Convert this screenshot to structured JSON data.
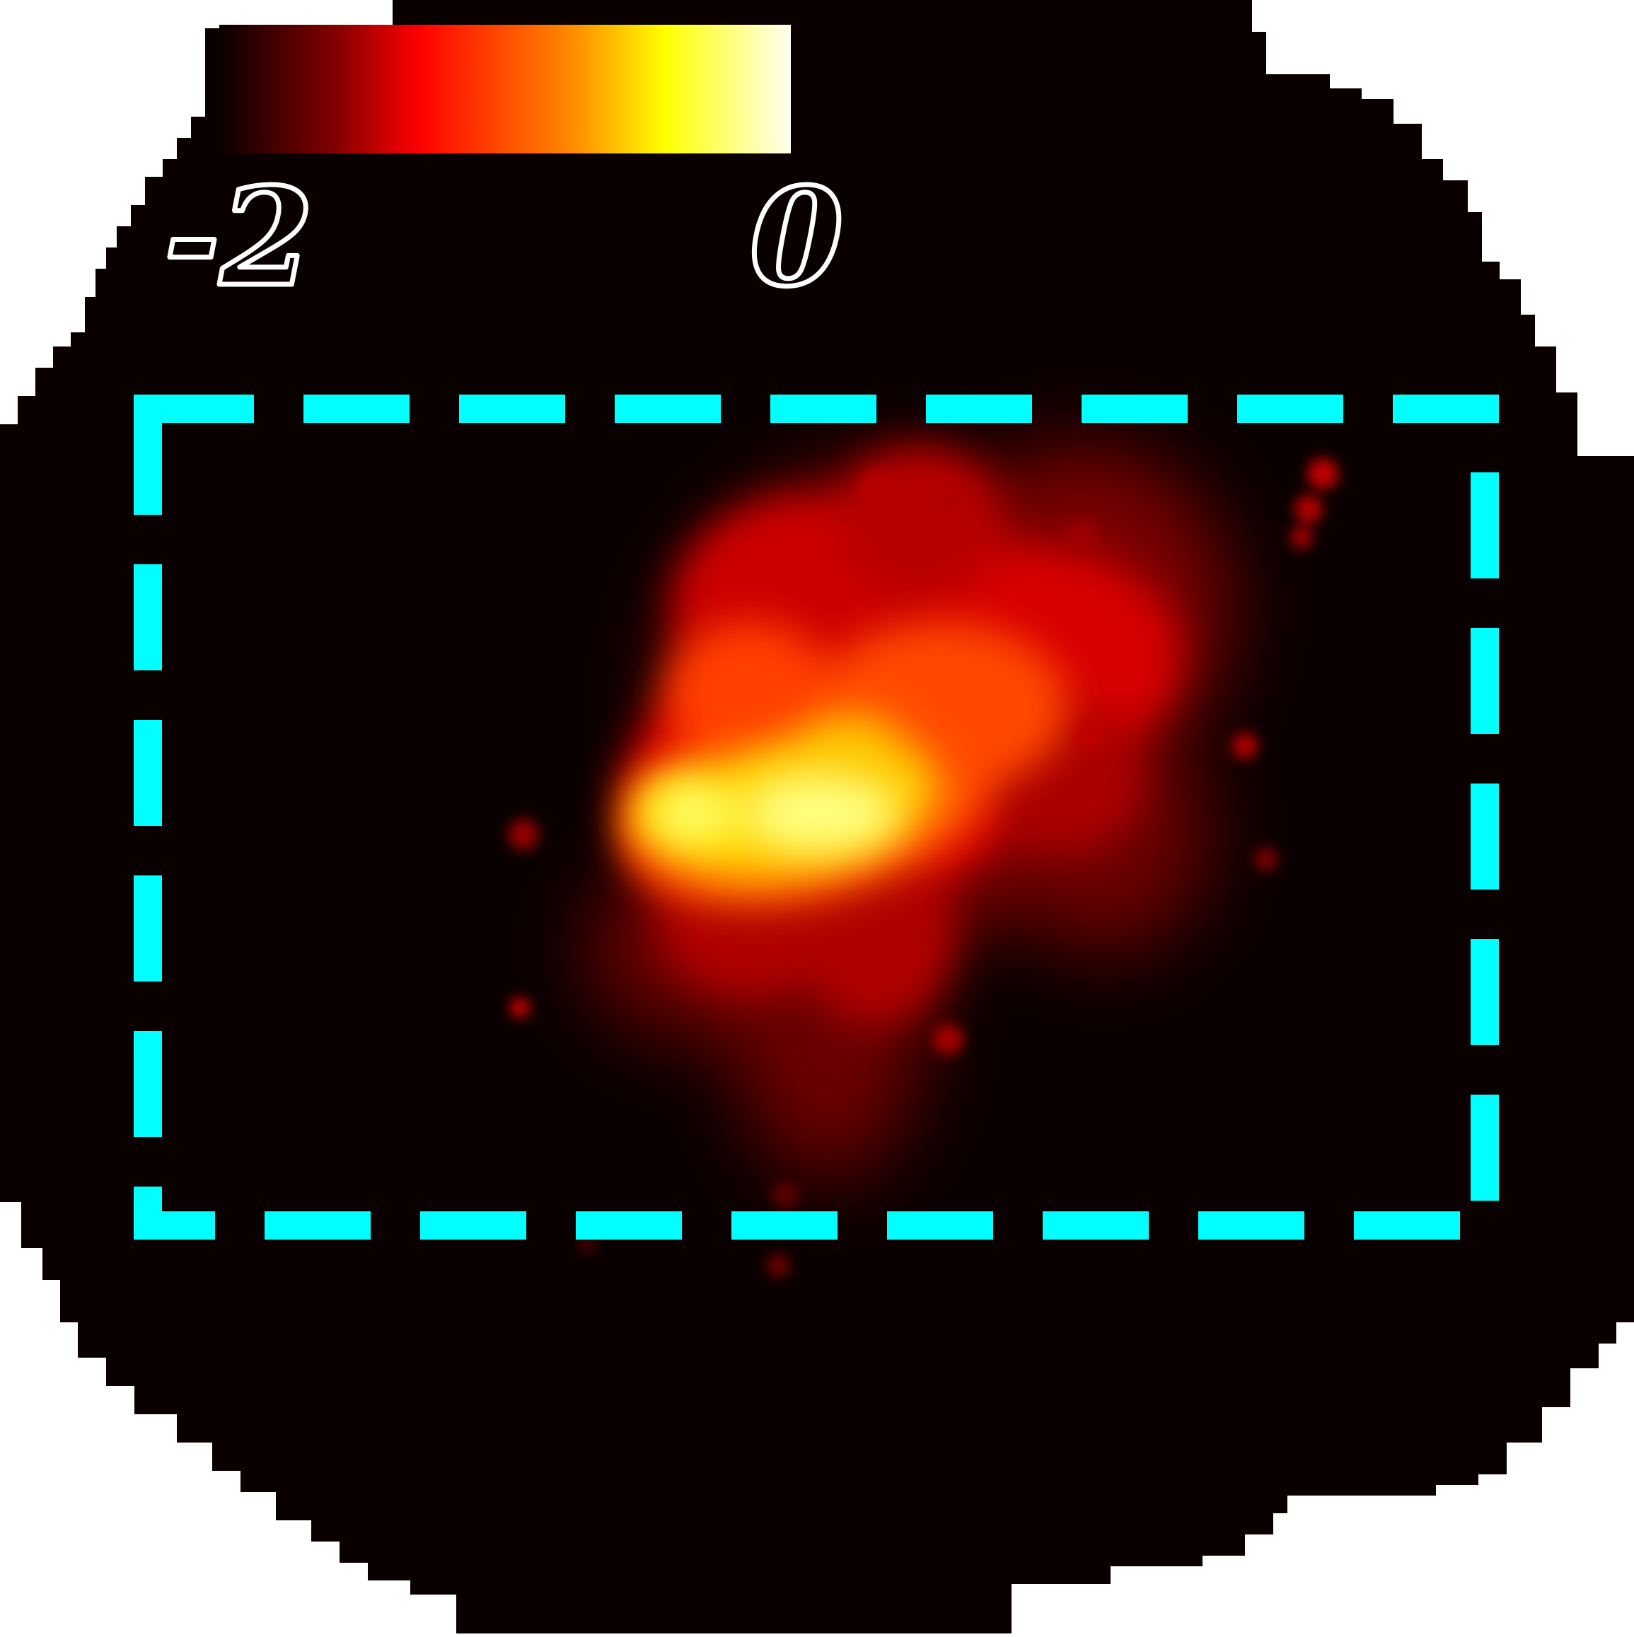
{
  "colors": {
    "background": "#ffffff",
    "field": "#0a0000",
    "box": "#00ffff",
    "label_stroke": "#ffffff"
  },
  "colorbar": {
    "min_label": "-2",
    "max_label": "0",
    "gradient": [
      "#0a0000",
      "#800000",
      "#ff0000",
      "#ff8c00",
      "#ffff00",
      "#fffff0"
    ]
  },
  "selection_box": {
    "style": "dashed"
  }
}
